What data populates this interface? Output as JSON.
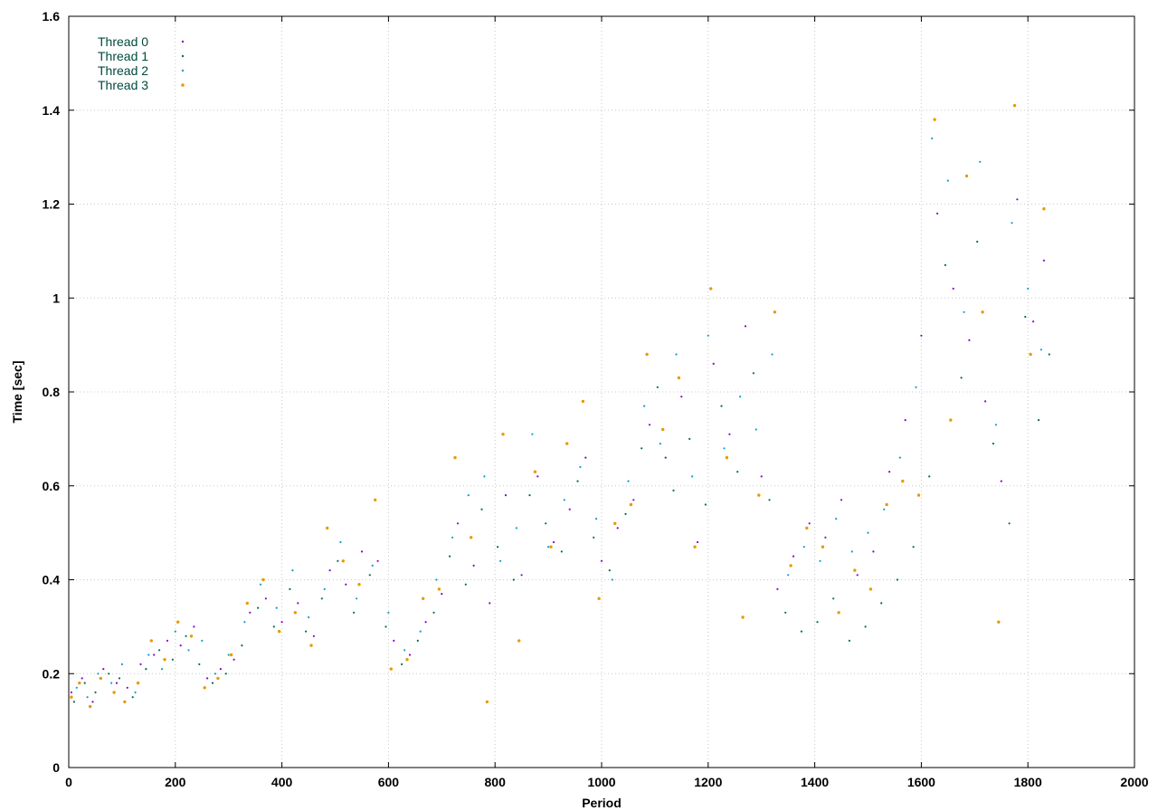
{
  "chart_data": {
    "type": "scatter",
    "title": "",
    "xlabel": "Period",
    "ylabel": "Time [sec]",
    "xlim": [
      0,
      2000
    ],
    "ylim": [
      0,
      1.6
    ],
    "xticks": [
      0,
      200,
      400,
      600,
      800,
      1000,
      1200,
      1400,
      1600,
      1800,
      2000
    ],
    "xtick_labels": [
      "0",
      "200",
      "400",
      "600",
      "800",
      "1000",
      "1200",
      "1400",
      "1600",
      "1800",
      "2000"
    ],
    "yticks": [
      0,
      0.2,
      0.4,
      0.6,
      0.8,
      1.0,
      1.2,
      1.4,
      1.6
    ],
    "ytick_labels": [
      "0",
      "0.2",
      "0.4",
      "0.6",
      "0.8",
      "1",
      "1.2",
      "1.4",
      "1.6"
    ],
    "grid": true,
    "legend": "top-left",
    "series": [
      {
        "name": "Thread 0",
        "color": "#8a00d4",
        "marker": "dot",
        "x": [
          5,
          25,
          45,
          65,
          90,
          110,
          135,
          160,
          185,
          210,
          235,
          260,
          285,
          310,
          340,
          370,
          400,
          430,
          460,
          490,
          520,
          550,
          580,
          610,
          640,
          670,
          700,
          730,
          760,
          790,
          820,
          850,
          880,
          910,
          940,
          970,
          1000,
          1030,
          1060,
          1090,
          1120,
          1150,
          1180,
          1210,
          1240,
          1270,
          1300,
          1330,
          1360,
          1390,
          1420,
          1450,
          1480,
          1510,
          1540,
          1570,
          1600,
          1630,
          1660,
          1690,
          1720,
          1750,
          1780,
          1810,
          1830
        ],
        "y": [
          0.16,
          0.19,
          0.14,
          0.21,
          0.18,
          0.17,
          0.22,
          0.24,
          0.27,
          0.26,
          0.3,
          0.19,
          0.21,
          0.23,
          0.33,
          0.36,
          0.31,
          0.35,
          0.28,
          0.42,
          0.39,
          0.46,
          0.44,
          0.27,
          0.24,
          0.31,
          0.37,
          0.52,
          0.43,
          0.35,
          0.58,
          0.41,
          0.62,
          0.48,
          0.55,
          0.66,
          0.44,
          0.51,
          0.57,
          0.73,
          0.66,
          0.79,
          0.48,
          0.86,
          0.71,
          0.94,
          0.62,
          0.38,
          0.45,
          0.52,
          0.49,
          0.57,
          0.41,
          0.46,
          0.63,
          0.74,
          0.92,
          1.18,
          1.02,
          0.91,
          0.78,
          0.61,
          1.21,
          0.95,
          1.08
        ]
      },
      {
        "name": "Thread 1",
        "color": "#006e4e",
        "marker": "dot",
        "x": [
          10,
          30,
          50,
          75,
          95,
          120,
          145,
          170,
          195,
          220,
          245,
          270,
          295,
          325,
          355,
          385,
          415,
          445,
          475,
          505,
          535,
          565,
          595,
          625,
          655,
          685,
          715,
          745,
          775,
          805,
          835,
          865,
          895,
          925,
          955,
          985,
          1015,
          1045,
          1075,
          1105,
          1135,
          1165,
          1195,
          1225,
          1255,
          1285,
          1315,
          1345,
          1375,
          1405,
          1435,
          1465,
          1495,
          1525,
          1555,
          1585,
          1615,
          1645,
          1675,
          1705,
          1735,
          1765,
          1795,
          1820,
          1840
        ],
        "y": [
          0.14,
          0.18,
          0.16,
          0.2,
          0.19,
          0.15,
          0.21,
          0.25,
          0.23,
          0.28,
          0.22,
          0.18,
          0.2,
          0.26,
          0.34,
          0.3,
          0.38,
          0.29,
          0.36,
          0.44,
          0.33,
          0.41,
          0.3,
          0.22,
          0.27,
          0.33,
          0.45,
          0.39,
          0.55,
          0.47,
          0.4,
          0.58,
          0.52,
          0.46,
          0.61,
          0.49,
          0.42,
          0.54,
          0.68,
          0.81,
          0.59,
          0.7,
          0.56,
          0.77,
          0.63,
          0.84,
          0.57,
          0.33,
          0.29,
          0.31,
          0.36,
          0.27,
          0.3,
          0.35,
          0.4,
          0.47,
          0.62,
          1.07,
          0.83,
          1.12,
          0.69,
          0.52,
          0.96,
          0.74,
          0.88
        ]
      },
      {
        "name": "Thread 2",
        "color": "#0aa0c8",
        "marker": "dot",
        "x": [
          15,
          35,
          55,
          80,
          100,
          125,
          150,
          175,
          200,
          225,
          250,
          275,
          300,
          330,
          360,
          390,
          420,
          450,
          480,
          510,
          540,
          570,
          600,
          630,
          660,
          690,
          720,
          750,
          780,
          810,
          840,
          870,
          900,
          930,
          960,
          990,
          1020,
          1050,
          1080,
          1110,
          1140,
          1170,
          1200,
          1230,
          1260,
          1290,
          1320,
          1350,
          1380,
          1410,
          1440,
          1470,
          1500,
          1530,
          1560,
          1590,
          1620,
          1650,
          1680,
          1710,
          1740,
          1770,
          1800,
          1825
        ],
        "y": [
          0.17,
          0.15,
          0.2,
          0.18,
          0.22,
          0.16,
          0.24,
          0.21,
          0.29,
          0.25,
          0.27,
          0.2,
          0.24,
          0.31,
          0.39,
          0.34,
          0.42,
          0.32,
          0.38,
          0.48,
          0.36,
          0.43,
          0.33,
          0.25,
          0.29,
          0.4,
          0.49,
          0.58,
          0.62,
          0.44,
          0.51,
          0.71,
          0.47,
          0.57,
          0.64,
          0.53,
          0.4,
          0.61,
          0.77,
          0.69,
          0.88,
          0.62,
          0.92,
          0.68,
          0.79,
          0.72,
          0.88,
          0.41,
          0.47,
          0.44,
          0.53,
          0.46,
          0.5,
          0.55,
          0.66,
          0.81,
          1.34,
          1.25,
          0.97,
          1.29,
          0.73,
          1.16,
          1.02,
          0.89
        ]
      },
      {
        "name": "Thread 3",
        "color": "#e89a00",
        "marker": "dot",
        "x": [
          5,
          20,
          40,
          60,
          85,
          105,
          130,
          155,
          180,
          205,
          230,
          255,
          280,
          305,
          335,
          365,
          395,
          425,
          455,
          485,
          515,
          545,
          575,
          605,
          635,
          665,
          695,
          725,
          755,
          785,
          815,
          845,
          875,
          905,
          935,
          965,
          995,
          1025,
          1055,
          1085,
          1115,
          1145,
          1175,
          1205,
          1235,
          1265,
          1295,
          1325,
          1355,
          1385,
          1415,
          1445,
          1475,
          1505,
          1535,
          1565,
          1595,
          1625,
          1655,
          1685,
          1715,
          1745,
          1775,
          1805,
          1830
        ],
        "y": [
          0.15,
          0.18,
          0.13,
          0.19,
          0.16,
          0.14,
          0.18,
          0.27,
          0.23,
          0.31,
          0.28,
          0.17,
          0.19,
          0.24,
          0.35,
          0.4,
          0.29,
          0.33,
          0.26,
          0.51,
          0.44,
          0.39,
          0.57,
          0.21,
          0.23,
          0.36,
          0.38,
          0.66,
          0.49,
          0.14,
          0.71,
          0.27,
          0.63,
          0.47,
          0.69,
          0.78,
          0.36,
          0.52,
          0.56,
          0.88,
          0.72,
          0.83,
          0.47,
          1.02,
          0.66,
          0.32,
          0.58,
          0.97,
          0.43,
          0.51,
          0.47,
          0.33,
          0.42,
          0.38,
          0.56,
          0.61,
          0.58,
          1.38,
          0.74,
          1.26,
          0.97,
          0.31,
          1.41,
          0.88,
          1.19
        ]
      }
    ]
  }
}
